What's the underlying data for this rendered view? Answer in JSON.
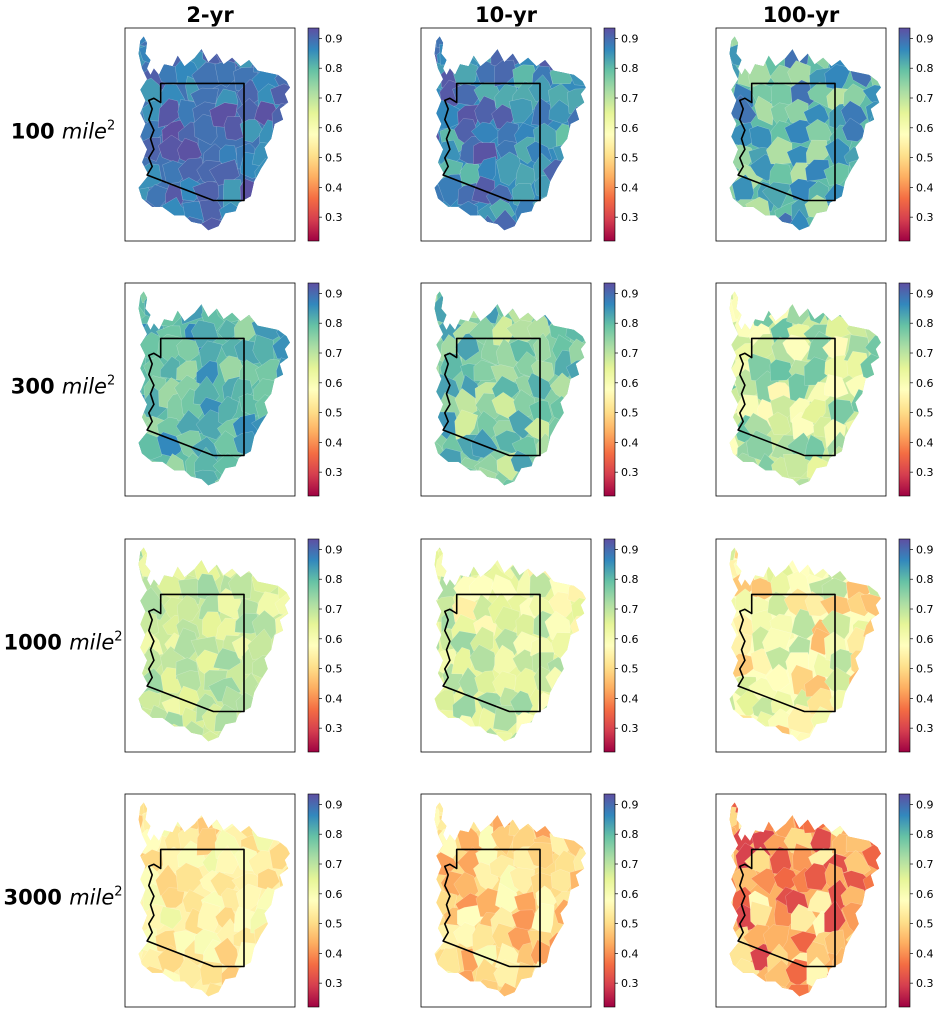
{
  "chart_data": {
    "type": "heatmap",
    "description_free": true,
    "columns": [
      "2-yr",
      "10-yr",
      "100-yr"
    ],
    "rows": [
      {
        "value": "100",
        "unit": "mile",
        "exp": "2"
      },
      {
        "value": "300",
        "unit": "mile",
        "exp": "2"
      },
      {
        "value": "1000",
        "unit": "mile",
        "exp": "2"
      },
      {
        "value": "3000",
        "unit": "mile",
        "exp": "2"
      }
    ],
    "colorbar": {
      "vmin": 0.22,
      "vmax": 0.935,
      "ticks": [
        0.3,
        0.4,
        0.5,
        0.6,
        0.7,
        0.8,
        0.9
      ],
      "tick_labels": [
        "0.3",
        "0.4",
        "0.5",
        "0.6",
        "0.7",
        "0.8",
        "0.9"
      ],
      "colormap": "Spectral"
    },
    "panel_mean_values": [
      [
        0.89,
        0.86,
        0.8
      ],
      [
        0.8,
        0.76,
        0.68
      ],
      [
        0.68,
        0.64,
        0.58
      ],
      [
        0.55,
        0.5,
        0.44
      ]
    ],
    "panel_spread": [
      [
        0.05,
        0.07,
        0.1
      ],
      [
        0.07,
        0.09,
        0.12
      ],
      [
        0.07,
        0.1,
        0.13
      ],
      [
        0.08,
        0.1,
        0.15
      ]
    ]
  }
}
